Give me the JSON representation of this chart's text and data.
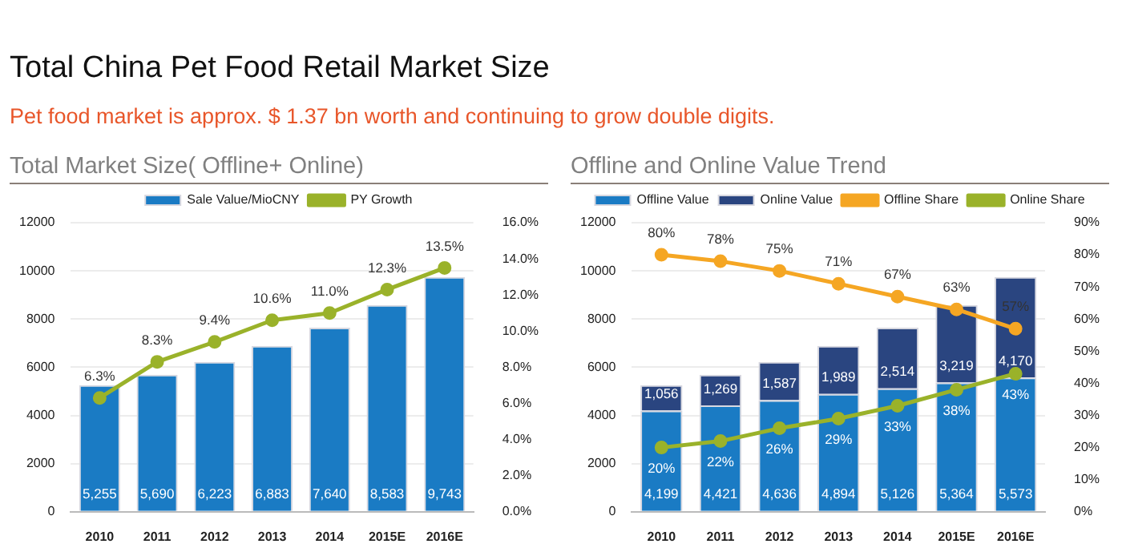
{
  "chart_data": [
    {
      "type": "bar",
      "title": "Total Market Size( Offline+ Online)",
      "annotations": [
        "Total China Pet Food Retail Market Size",
        "Pet food market is approx. $ 1.37 bn worth and continuing to grow double digits."
      ],
      "categories": [
        "2010",
        "2011",
        "2012",
        "2013",
        "2014",
        "2015E",
        "2016E"
      ],
      "series": [
        {
          "name": "Sale Value/MioCNY",
          "color": "#1a7bc4",
          "values": [
            5255,
            5690,
            6223,
            6883,
            7640,
            8583,
            9743
          ],
          "value_labels": [
            "5,255",
            "5,690",
            "6,223",
            "6,883",
            "7,640",
            "8,583",
            "9,743"
          ]
        },
        {
          "name": "PY Growth",
          "type": "line",
          "axis": "y2",
          "color": "#9ab22a",
          "values": [
            6.3,
            8.3,
            9.4,
            10.6,
            11.0,
            12.3,
            13.5
          ],
          "value_labels": [
            "6.3%",
            "8.3%",
            "9.4%",
            "10.6%",
            "11.0%",
            "12.3%",
            "13.5%"
          ]
        }
      ],
      "ylim": [
        0,
        12000
      ],
      "yticks": [
        0,
        2000,
        4000,
        6000,
        8000,
        10000,
        12000
      ],
      "y2lim": [
        0,
        16
      ],
      "y2ticks": [
        {
          "value": 0,
          "label": "0.0%"
        },
        {
          "value": 2,
          "label": "2.0%"
        },
        {
          "value": 4,
          "label": "4.0%"
        },
        {
          "value": 6,
          "label": "6.0%"
        },
        {
          "value": 8,
          "label": "8.0%"
        },
        {
          "value": 10,
          "label": "10.0%"
        },
        {
          "value": 12,
          "label": "12.0%"
        },
        {
          "value": 14,
          "label": "14.0%"
        },
        {
          "value": 16,
          "label": "16.0%"
        }
      ],
      "grid": "y",
      "legend": "top",
      "marker": "circle"
    },
    {
      "type": "bar",
      "title": "Offline and Online Value Trend",
      "categories": [
        "2010",
        "2011",
        "2012",
        "2013",
        "2014",
        "2015E",
        "2016E"
      ],
      "stacked": true,
      "series": [
        {
          "name": "Offline Value",
          "color": "#1a7bc4",
          "values": [
            4199,
            4421,
            4636,
            4894,
            5126,
            5364,
            5573
          ],
          "value_labels": [
            "4,199",
            "4,421",
            "4,636",
            "4,894",
            "5,126",
            "5,364",
            "5,573"
          ]
        },
        {
          "name": "Online Value",
          "color": "#2a4580",
          "values": [
            1056,
            1269,
            1587,
            1989,
            2514,
            3219,
            4170
          ],
          "value_labels": [
            "1,056",
            "1,269",
            "1,587",
            "1,989",
            "2,514",
            "3,219",
            "4,170"
          ]
        },
        {
          "name": "Offline Share",
          "type": "line",
          "axis": "y2",
          "color": "#f5a623",
          "values": [
            80,
            78,
            75,
            71,
            67,
            63,
            57
          ],
          "value_labels": [
            "80%",
            "78%",
            "75%",
            "71%",
            "67%",
            "63%",
            "57%"
          ]
        },
        {
          "name": "Online Share",
          "type": "line",
          "axis": "y2",
          "color": "#9ab22a",
          "values": [
            20,
            22,
            26,
            29,
            33,
            38,
            43
          ],
          "value_labels": [
            "20%",
            "22%",
            "26%",
            "29%",
            "33%",
            "38%",
            "43%"
          ]
        }
      ],
      "ylim": [
        0,
        12000
      ],
      "yticks": [
        0,
        2000,
        4000,
        6000,
        8000,
        10000,
        12000
      ],
      "y2lim": [
        0,
        90
      ],
      "y2ticks": [
        {
          "value": 0,
          "label": "0%"
        },
        {
          "value": 10,
          "label": "10%"
        },
        {
          "value": 20,
          "label": "20%"
        },
        {
          "value": 30,
          "label": "30%"
        },
        {
          "value": 40,
          "label": "40%"
        },
        {
          "value": 50,
          "label": "50%"
        },
        {
          "value": 60,
          "label": "60%"
        },
        {
          "value": 70,
          "label": "70%"
        },
        {
          "value": 80,
          "label": "80%"
        },
        {
          "value": 90,
          "label": "90%"
        }
      ],
      "grid": "y",
      "legend": "top",
      "marker": "circle"
    }
  ]
}
